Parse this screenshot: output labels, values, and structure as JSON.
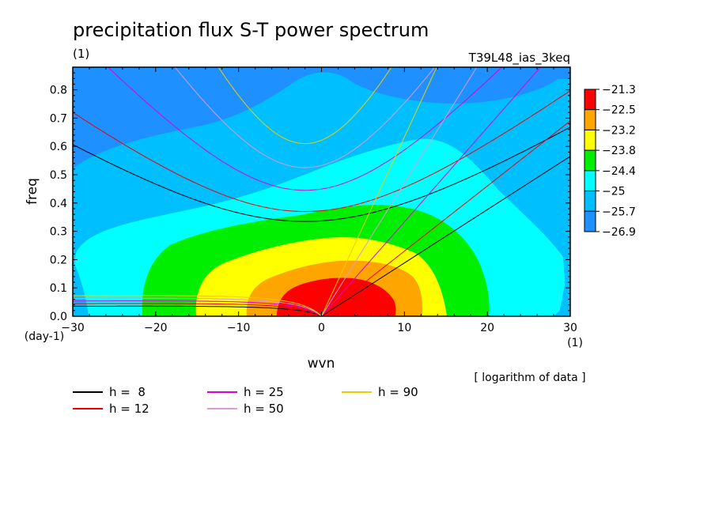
{
  "chart_data": {
    "type": "heatmap",
    "title": "precipitation flux S-T power spectrum",
    "subtitle_left": "(1)",
    "subtitle_right": "T39L48_ias_3keq",
    "xlabel": "wvn",
    "ylabel": "freq",
    "x_unit": "(1)",
    "y_unit": "(day-1)",
    "xlim": [
      -30,
      30
    ],
    "ylim": [
      0,
      0.88
    ],
    "x_ticks": [
      -30,
      -20,
      -10,
      0,
      10,
      20,
      30
    ],
    "x_tick_labels": [
      "−30",
      "−20",
      "−10",
      "0",
      "10",
      "20",
      "30"
    ],
    "y_ticks": [
      0,
      0.1,
      0.2,
      0.3,
      0.4,
      0.5,
      0.6,
      0.7,
      0.8
    ],
    "y_tick_labels": [
      "0.0",
      "0.1",
      "0.2",
      "0.3",
      "0.4",
      "0.5",
      "0.6",
      "0.7",
      "0.8"
    ],
    "note": "[ logarithm of data ]",
    "colorbar": {
      "levels": [
        "−21.3",
        "−22.5",
        "−23.2",
        "−23.8",
        "−24.4",
        "−25",
        "−25.7",
        "−26.9"
      ],
      "colors": [
        "#ff0000",
        "#ffa500",
        "#ffff00",
        "#00ee00",
        "#00ffff",
        "#00bfff",
        "#1e90ff"
      ]
    },
    "contour_regions": [
      {
        "level": "-26.9",
        "color": "#1e90ff",
        "approx_bounds": "upper-left region freq > 0.55 at wvn -30, dipping to 0.65 at wvn -5, plus upper-right corner"
      },
      {
        "level": "-25.7",
        "color": "#00bfff",
        "approx_bounds": "band between -26.9 region and cyan region; also bottom-left and bottom-right corners"
      },
      {
        "level": "-25",
        "color": "#00ffff",
        "approx_bounds": "wvn -29..29, freq 0..0.63, peak near wvn 10"
      },
      {
        "level": "-24.4",
        "color": "#00ee00",
        "approx_bounds": "wvn -21..20, freq 0..0.41"
      },
      {
        "level": "-23.8",
        "color": "#ffff00",
        "approx_bounds": "wvn -15..15, freq 0..0.31"
      },
      {
        "level": "-23.2",
        "color": "#ffa500",
        "approx_bounds": "wvn -9..11, freq 0..0.22"
      },
      {
        "level": "-22.5",
        "color": "#ff0000",
        "approx_bounds": "wvn -5..9, freq 0..0.14"
      }
    ],
    "dispersion_curves": [
      {
        "h": "8",
        "label": "h =  8",
        "color": "#000000"
      },
      {
        "h": "12",
        "label": "h = 12",
        "color": "#ee0000"
      },
      {
        "h": "25",
        "label": "h = 25",
        "color": "#dd00dd"
      },
      {
        "h": "50",
        "label": "h = 50",
        "color": "#dd99dd"
      },
      {
        "h": "90",
        "label": "h = 90",
        "color": "#eecc00"
      }
    ],
    "dispersion_note": "Each h has an Ekman/Rossby curve (low freq, negative wvn), a Kelvin line (positive slope from origin), and an inertia-gravity curve (U-shaped, min freq near wvn -2).",
    "dispersion_minima": [
      {
        "h": "8",
        "ig_min_freq": 0.335,
        "kelvin_freq_at_30": 0.565
      },
      {
        "h": "12",
        "ig_min_freq": 0.37,
        "kelvin_freq_at_30": 0.69
      },
      {
        "h": "25",
        "ig_min_freq": 0.445,
        "kelvin_freq_at_30": 1.0
      },
      {
        "h": "50",
        "ig_min_freq": 0.525,
        "kelvin_freq_at_30": 1.41
      },
      {
        "h": "90",
        "ig_min_freq": 0.61,
        "kelvin_freq_at_30": 1.9
      }
    ],
    "legend_placement": "below plot, three columns"
  }
}
